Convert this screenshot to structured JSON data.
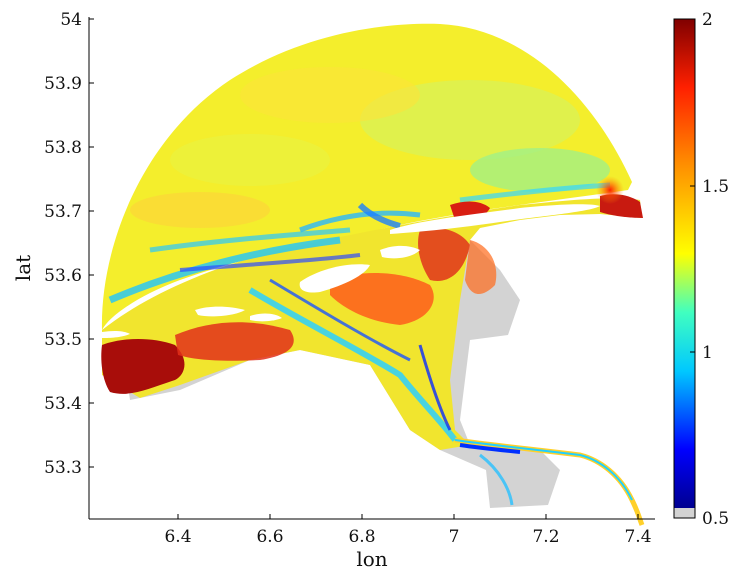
{
  "figure": {
    "xlabel": "lon",
    "ylabel": "lat",
    "x_ticks": [
      "6.4",
      "6.6",
      "6.8",
      "7",
      "7.2",
      "7.4"
    ],
    "y_ticks": [
      "53.3",
      "53.4",
      "53.5",
      "53.6",
      "53.7",
      "53.8",
      "53.9",
      "54"
    ],
    "colorbar_ticks": [
      "0.5",
      "1",
      "1.5",
      "2"
    ],
    "colorbar_range": [
      0.5,
      2
    ],
    "colormap": [
      "#000090",
      "#0000ff",
      "#00c8ff",
      "#40ffc0",
      "#ffff00",
      "#ff9000",
      "#ff2000",
      "#800000"
    ],
    "land_color": "#d3d3d3",
    "x_range": [
      6.21,
      7.45
    ],
    "y_range": [
      53.22,
      54.0
    ]
  }
}
